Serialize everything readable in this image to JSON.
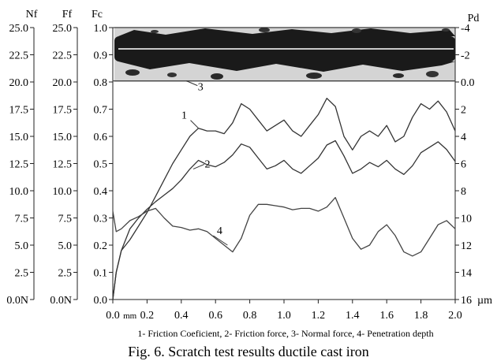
{
  "chart_data": {
    "type": "line",
    "caption": "Fig. 6. Scratch test results ductile cast iron",
    "legend_text": "1- Friction Coeficient, 2- Friction force, 3- Normal force, 4- Penetration depth",
    "micrograph": "scratch-track-micrograph",
    "x_axis": {
      "range": [
        0,
        2.0
      ],
      "ticks": [
        0.0,
        0.2,
        0.4,
        0.6,
        0.8,
        1.0,
        1.2,
        1.4,
        1.6,
        1.8,
        2.0
      ],
      "tick_labels": [
        "0.0",
        "0.2",
        "0.4",
        "0.6",
        "0.8",
        "1.0",
        "1.2",
        "1.4",
        "1.6",
        "1.8",
        "2.0"
      ],
      "unit": "mm"
    },
    "axes": {
      "Nf": {
        "title": "Nf",
        "range": [
          0,
          25
        ],
        "ticks": [
          0,
          2.5,
          5,
          7.5,
          10,
          12.5,
          15,
          17.5,
          20,
          22.5,
          25
        ],
        "tick_labels": [
          "0.0N",
          "2.5",
          "5.0",
          "7.5",
          "10.0",
          "12.5",
          "15.0",
          "17.5",
          "20.0",
          "22.5",
          "25.0"
        ]
      },
      "Ff": {
        "title": "Ff",
        "range": [
          0,
          25
        ],
        "ticks": [
          0,
          2.5,
          5,
          7.5,
          10,
          12.5,
          15,
          17.5,
          20,
          22.5,
          25
        ],
        "tick_labels": [
          "0.0N",
          "2.5",
          "5.0",
          "7.5",
          "10.0",
          "12.5",
          "15.0",
          "17.5",
          "20.0",
          "22.5",
          "25.0"
        ]
      },
      "Fc": {
        "title": "Fc",
        "range": [
          0,
          1.0
        ],
        "ticks": [
          0,
          0.1,
          0.2,
          0.3,
          0.4,
          0.5,
          0.6,
          0.7,
          0.8,
          0.9,
          1.0
        ],
        "tick_labels": [
          "0.0",
          "0.1",
          "0.2",
          "0.3",
          "0.4",
          "0.5",
          "0.6",
          "0.7",
          "0.8",
          "0.9",
          "1.0"
        ]
      },
      "Pd": {
        "title": "Pd",
        "range": [
          -4,
          16
        ],
        "inverted": true,
        "unit": "µm",
        "ticks": [
          -4,
          -2,
          0,
          2,
          4,
          6,
          8,
          10,
          12,
          14,
          16
        ],
        "tick_labels": [
          "-4",
          "-2",
          "0.0",
          "2",
          "4",
          "6",
          "8",
          "10",
          "12",
          "14",
          "16"
        ]
      }
    },
    "series": [
      {
        "name": "1",
        "label": "1",
        "axis": "Fc",
        "color": "#333333",
        "x": [
          0,
          0.02,
          0.05,
          0.1,
          0.15,
          0.2,
          0.25,
          0.3,
          0.35,
          0.4,
          0.45,
          0.5,
          0.55,
          0.6,
          0.65,
          0.7,
          0.75,
          0.8,
          0.85,
          0.9,
          0.95,
          1.0,
          1.05,
          1.1,
          1.15,
          1.2,
          1.25,
          1.3,
          1.35,
          1.4,
          1.45,
          1.5,
          1.55,
          1.6,
          1.65,
          1.7,
          1.75,
          1.8,
          1.85,
          1.9,
          1.95,
          2.0
        ],
        "y": [
          0.0,
          0.1,
          0.18,
          0.22,
          0.27,
          0.32,
          0.38,
          0.44,
          0.5,
          0.55,
          0.6,
          0.63,
          0.62,
          0.62,
          0.61,
          0.65,
          0.72,
          0.7,
          0.66,
          0.62,
          0.64,
          0.66,
          0.62,
          0.6,
          0.64,
          0.68,
          0.74,
          0.71,
          0.6,
          0.55,
          0.6,
          0.62,
          0.6,
          0.64,
          0.58,
          0.6,
          0.67,
          0.72,
          0.7,
          0.73,
          0.69,
          0.62
        ]
      },
      {
        "name": "2",
        "label": "2",
        "axis": "Ff",
        "color": "#333333",
        "x": [
          0,
          0.02,
          0.05,
          0.1,
          0.15,
          0.2,
          0.25,
          0.3,
          0.35,
          0.4,
          0.45,
          0.5,
          0.55,
          0.6,
          0.65,
          0.7,
          0.75,
          0.8,
          0.85,
          0.9,
          0.95,
          1.0,
          1.05,
          1.1,
          1.15,
          1.2,
          1.25,
          1.3,
          1.35,
          1.4,
          1.45,
          1.5,
          1.55,
          1.6,
          1.65,
          1.7,
          1.75,
          1.8,
          1.85,
          1.9,
          1.95,
          2.0
        ],
        "y": [
          0.0,
          2.5,
          4.5,
          6.5,
          7.5,
          8.3,
          9.0,
          9.6,
          10.2,
          11.0,
          12.0,
          12.8,
          12.4,
          12.2,
          12.6,
          13.3,
          14.3,
          14.0,
          13.0,
          12.0,
          12.3,
          12.8,
          12.0,
          11.6,
          12.3,
          13.0,
          14.2,
          14.6,
          13.2,
          11.6,
          12.0,
          12.6,
          12.2,
          12.8,
          12.0,
          11.5,
          12.3,
          13.5,
          14.0,
          14.5,
          13.8,
          12.7
        ]
      },
      {
        "name": "3",
        "label": "3",
        "axis": "Nf",
        "color": "#444444",
        "x": [
          0,
          0.2,
          0.4,
          0.6,
          0.8,
          1.0,
          1.2,
          1.4,
          1.6,
          1.8,
          2.0
        ],
        "y": [
          20.1,
          20.1,
          20.1,
          20.1,
          20.1,
          20.1,
          20.1,
          20.1,
          20.1,
          20.1,
          20.1
        ]
      },
      {
        "name": "4",
        "label": "4",
        "axis": "Pd",
        "color": "#444444",
        "x": [
          0,
          0.02,
          0.05,
          0.1,
          0.15,
          0.2,
          0.25,
          0.3,
          0.35,
          0.4,
          0.45,
          0.5,
          0.55,
          0.6,
          0.65,
          0.7,
          0.75,
          0.8,
          0.85,
          0.9,
          0.95,
          1.0,
          1.05,
          1.1,
          1.15,
          1.2,
          1.25,
          1.3,
          1.35,
          1.4,
          1.45,
          1.5,
          1.55,
          1.6,
          1.65,
          1.7,
          1.75,
          1.8,
          1.85,
          1.9,
          1.95,
          2.0
        ],
        "y": [
          9.5,
          11.0,
          10.8,
          10.2,
          9.9,
          9.5,
          9.3,
          10.0,
          10.6,
          10.7,
          10.9,
          10.8,
          11.0,
          11.5,
          12.0,
          12.5,
          11.5,
          9.8,
          9.0,
          9.0,
          9.1,
          9.2,
          9.4,
          9.3,
          9.3,
          9.5,
          9.2,
          8.5,
          10.0,
          11.5,
          12.3,
          12.0,
          11.0,
          10.5,
          11.3,
          12.5,
          12.8,
          12.5,
          11.5,
          10.5,
          10.2,
          10.8
        ]
      }
    ]
  }
}
